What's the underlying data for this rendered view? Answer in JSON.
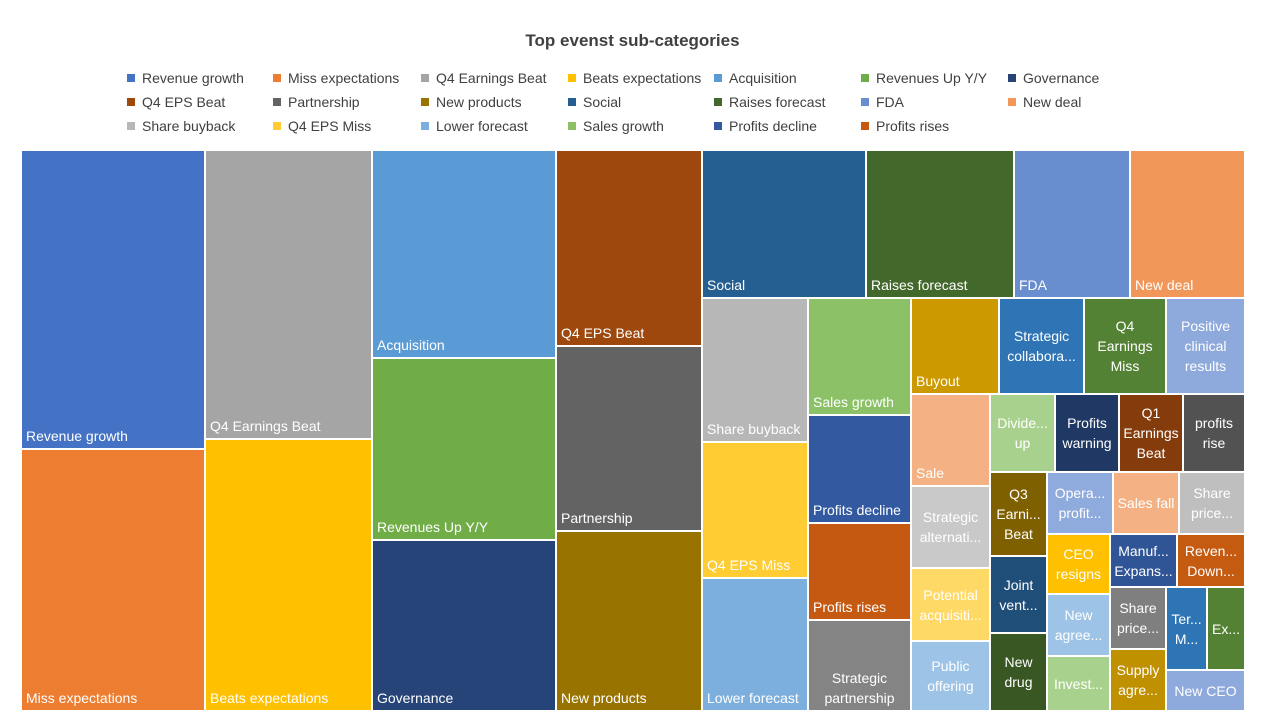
{
  "chart_data": {
    "type": "treemap",
    "title": "Top evenst sub-categories",
    "legend_placement": "top",
    "legend": [
      {
        "label": "Revenue growth",
        "color": "#4472C4"
      },
      {
        "label": "Miss expectations",
        "color": "#ED7D31"
      },
      {
        "label": "Q4 Earnings Beat",
        "color": "#A5A5A5"
      },
      {
        "label": "Beats expectations",
        "color": "#FFC000"
      },
      {
        "label": "Acquisition",
        "color": "#5B9BD5"
      },
      {
        "label": "Revenues Up Y/Y",
        "color": "#70AD47"
      },
      {
        "label": "Governance",
        "color": "#264478"
      },
      {
        "label": "Q4 EPS Beat",
        "color": "#9E480E"
      },
      {
        "label": "Partnership",
        "color": "#636363"
      },
      {
        "label": "New products",
        "color": "#997300"
      },
      {
        "label": "Social",
        "color": "#255E91"
      },
      {
        "label": "Raises forecast",
        "color": "#43682B"
      },
      {
        "label": "FDA",
        "color": "#698ED0"
      },
      {
        "label": "New deal",
        "color": "#F1975A"
      },
      {
        "label": "Share buyback",
        "color": "#B7B7B7"
      },
      {
        "label": "Q4 EPS Miss",
        "color": "#FFCD33"
      },
      {
        "label": "Lower forecast",
        "color": "#7CAFDD"
      },
      {
        "label": "Sales growth",
        "color": "#8CC168"
      },
      {
        "label": "Profits decline",
        "color": "#335AA1"
      },
      {
        "label": "Profits rises",
        "color": "#C65911"
      }
    ],
    "tiles": [
      {
        "label": "Revenue growth",
        "value": 7.1,
        "color": "#4472C4"
      },
      {
        "label": "Miss expectations",
        "value": 6.5,
        "color": "#ED7D31"
      },
      {
        "label": "Q4 Earnings Beat",
        "value": 5.6,
        "color": "#A5A5A5"
      },
      {
        "label": "Beats expectations",
        "value": 5.0,
        "color": "#FFC000"
      },
      {
        "label": "Acquisition",
        "value": 4.5,
        "color": "#5B9BD5"
      },
      {
        "label": "Revenues Up Y/Y",
        "value": 3.9,
        "color": "#70AD47"
      },
      {
        "label": "Governance",
        "value": 3.8,
        "color": "#264478"
      },
      {
        "label": "Q4 EPS Beat",
        "value": 3.0,
        "color": "#9E480E"
      },
      {
        "label": "Partnership",
        "value": 2.7,
        "color": "#636363"
      },
      {
        "label": "New products",
        "value": 2.6,
        "color": "#997300"
      },
      {
        "label": "Social",
        "value": 2.1,
        "color": "#255E91"
      },
      {
        "label": "Raises forecast",
        "value": 2.1,
        "color": "#43682B"
      },
      {
        "label": "FDA",
        "value": 1.6,
        "color": "#698ED0"
      },
      {
        "label": "New deal",
        "value": 1.6,
        "color": "#F1975A"
      },
      {
        "label": "Share buyback",
        "value": 1.4,
        "color": "#B7B7B7"
      },
      {
        "label": "Q4 EPS Miss",
        "value": 1.3,
        "color": "#FFCD33"
      },
      {
        "label": "Lower forecast",
        "value": 1.3,
        "color": "#7CAFDD"
      },
      {
        "label": "Sales growth",
        "value": 1.1,
        "color": "#8CC168"
      },
      {
        "label": "Profits decline",
        "value": 1.0,
        "color": "#335AA1"
      },
      {
        "label": "Profits rises",
        "value": 0.9,
        "color": "#C65911"
      },
      {
        "label": "Strategic partnership",
        "value": 0.8,
        "color": "#848484"
      },
      {
        "label": "Buyout",
        "value": 0.7,
        "color": "#CC9A00"
      },
      {
        "label": "Strategic collaboration",
        "value": 0.6,
        "color": "#2F75B5"
      },
      {
        "label": "Q4 Earnings Miss",
        "value": 0.6,
        "color": "#548235"
      },
      {
        "label": "Positive clinical results",
        "value": 0.6,
        "color": "#8EA9DB"
      },
      {
        "label": "Sale",
        "value": 0.6,
        "color": "#F4B183"
      },
      {
        "label": "Strategic alternatives",
        "value": 0.5,
        "color": "#C9C9C9"
      },
      {
        "label": "Potential acquisition",
        "value": 0.5,
        "color": "#FFD966"
      },
      {
        "label": "Public offering",
        "value": 0.5,
        "color": "#9DC3E6"
      },
      {
        "label": "Dividend up",
        "value": 0.4,
        "color": "#A9D18E"
      },
      {
        "label": "Profits warning",
        "value": 0.4,
        "color": "#203864"
      },
      {
        "label": "Q1 Earnings Beat",
        "value": 0.4,
        "color": "#843C0C"
      },
      {
        "label": "profits rise",
        "value": 0.4,
        "color": "#525252"
      },
      {
        "label": "Q3 Earnings Beat",
        "value": 0.4,
        "color": "#7F6000"
      },
      {
        "label": "Joint venture",
        "value": 0.3,
        "color": "#1F4E79"
      },
      {
        "label": "New drug",
        "value": 0.3,
        "color": "#385723"
      },
      {
        "label": "Operating profit",
        "value": 0.3,
        "color": "#8FAADC"
      },
      {
        "label": "Sales fall",
        "value": 0.2,
        "color": "#F4B183"
      },
      {
        "label": "Share price",
        "value": 0.2,
        "color": "#BFBFBF"
      },
      {
        "label": "CEO resigns",
        "value": 0.2,
        "color": "#FFC000"
      },
      {
        "label": "Manufacturing Expansion",
        "value": 0.2,
        "color": "#2F5597"
      },
      {
        "label": "Revenue Down",
        "value": 0.2,
        "color": "#C55A11"
      },
      {
        "label": "New agreement",
        "value": 0.2,
        "color": "#9DC3E6"
      },
      {
        "label": "Share price",
        "value": 0.2,
        "color": "#7F7F7F"
      },
      {
        "label": "Termination M",
        "value": 0.15,
        "color": "#2E75B6"
      },
      {
        "label": "Expansion",
        "value": 0.15,
        "color": "#548235"
      },
      {
        "label": "Investment",
        "value": 0.2,
        "color": "#A9D18E"
      },
      {
        "label": "Supply agreement",
        "value": 0.2,
        "color": "#BF9000"
      },
      {
        "label": "New CEO",
        "value": 0.15,
        "color": "#8EA9DB"
      }
    ],
    "display_labels": [
      [
        "Revenue growth"
      ],
      [
        "Miss expectations"
      ],
      [
        "Q4 Earnings Beat"
      ],
      [
        "Beats expectations"
      ],
      [
        "Acquisition"
      ],
      [
        "Revenues Up Y/Y"
      ],
      [
        "Governance"
      ],
      [
        "Q4 EPS Beat"
      ],
      [
        "Partnership"
      ],
      [
        "New products"
      ],
      [
        "Social"
      ],
      [
        "Raises forecast"
      ],
      [
        "FDA"
      ],
      [
        "New deal"
      ],
      [
        "Share buyback"
      ],
      [
        "Q4 EPS Miss"
      ],
      [
        "Lower forecast"
      ],
      [
        "Sales growth"
      ],
      [
        "Profits decline"
      ],
      [
        "Profits rises"
      ],
      [
        "Strategic",
        "partnership"
      ],
      [
        "Buyout"
      ],
      [
        "Strategic",
        "collabora..."
      ],
      [
        "Q4",
        "Earnings",
        "Miss"
      ],
      [
        "Positive",
        "clinical",
        "results"
      ],
      [
        "Sale"
      ],
      [
        "Strategic",
        "alternati..."
      ],
      [
        "Potential",
        "acquisiti..."
      ],
      [
        "Public",
        "offering"
      ],
      [
        "Divide...",
        "up"
      ],
      [
        "Profits",
        "warning"
      ],
      [
        "Q1",
        "Earnings",
        "Beat"
      ],
      [
        "profits",
        "rise"
      ],
      [
        "Q3",
        "Earni...",
        "Beat"
      ],
      [
        "Joint",
        "vent..."
      ],
      [
        "New",
        "drug"
      ],
      [
        "Opera...",
        "profit..."
      ],
      [
        "Sales fall"
      ],
      [
        "Share",
        "price..."
      ],
      [
        "CEO",
        "resigns"
      ],
      [
        "Manuf...",
        "Expans..."
      ],
      [
        "Reven...",
        "Down..."
      ],
      [
        "New",
        "agree..."
      ],
      [
        "Share",
        "price..."
      ],
      [
        "Ter...",
        "M..."
      ],
      [
        "Ex..."
      ],
      [
        "Invest..."
      ],
      [
        "Supply",
        "agre..."
      ],
      [
        "New CEO"
      ]
    ]
  }
}
